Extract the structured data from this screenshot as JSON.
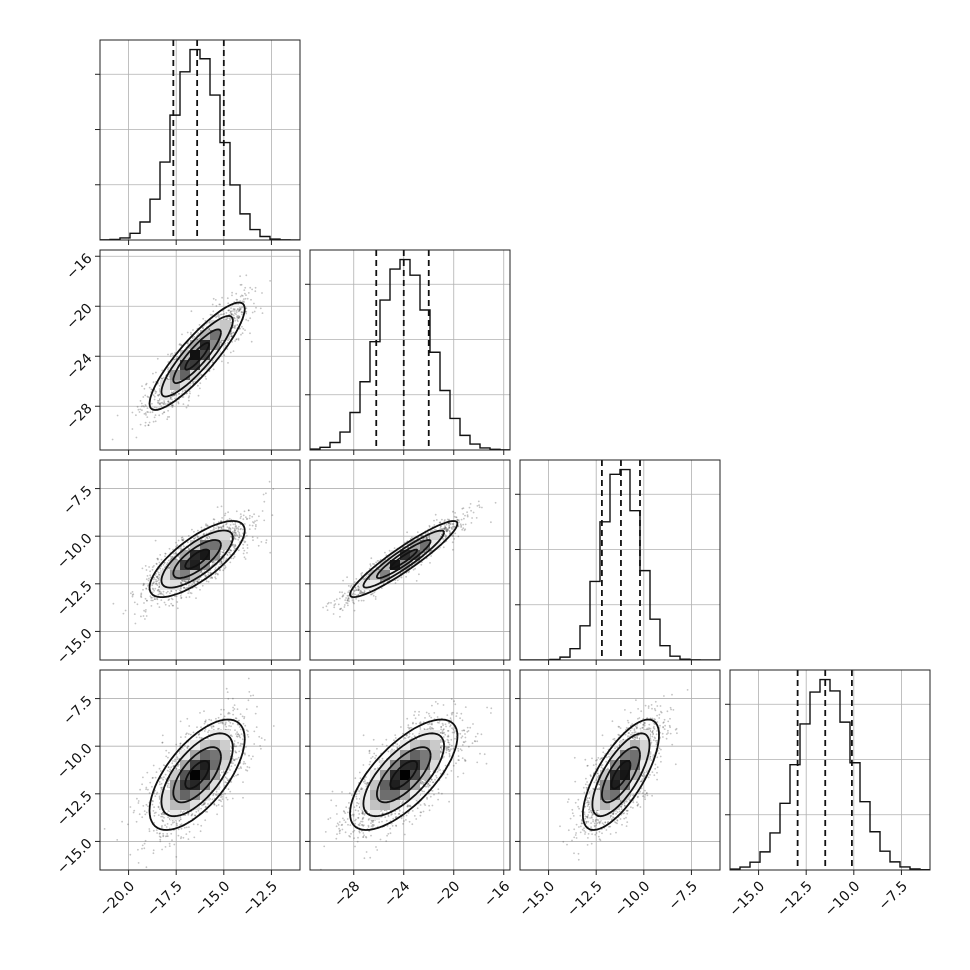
{
  "chart_data": {
    "type": "corner",
    "variables": [
      {
        "mean": -16.4,
        "sd": 1.25,
        "q16": -17.65,
        "q50": -16.4,
        "q84": -15.0
      },
      {
        "mean": -24.0,
        "sd": 2.15,
        "q16": -26.2,
        "q50": -24.0,
        "q84": -22.0
      },
      {
        "mean": -11.2,
        "sd": 1.0,
        "q16": -12.2,
        "q50": -11.2,
        "q84": -10.2
      },
      {
        "mean": -11.5,
        "sd": 1.45,
        "q16": -12.95,
        "q50": -11.5,
        "q84": -10.1
      }
    ],
    "ranges": [
      [
        -21.5,
        -11.0
      ],
      [
        -31.5,
        -15.5
      ],
      [
        -16.5,
        -6.0
      ],
      [
        -16.5,
        -6.0
      ]
    ],
    "correlations": [
      [
        1,
        0.88,
        0.75,
        0.65
      ],
      [
        0.88,
        1,
        0.93,
        0.7
      ],
      [
        0.75,
        0.93,
        1,
        0.72
      ],
      [
        0.65,
        0.7,
        0.72,
        1
      ]
    ],
    "tick_values": [
      [
        -20.0,
        -17.5,
        -15.0,
        -12.5
      ],
      [
        -28,
        -24,
        -20,
        -16
      ],
      [
        -15.0,
        -12.5,
        -10.0,
        -7.5
      ],
      [
        -15.0,
        -12.5,
        -10.0,
        -7.5
      ]
    ],
    "tick_labels": [
      [
        "−20.0",
        "−17.5",
        "−15.0",
        "−12.5"
      ],
      [
        "−28",
        "−24",
        "−20",
        "−16"
      ],
      [
        "−15.0",
        "−12.5",
        "−10.0",
        "−7.5"
      ],
      [
        "−15.0",
        "−12.5",
        "−10.0",
        "−7.5"
      ]
    ],
    "diag_scale_fracs": [
      0.29,
      0.58,
      0.87
    ],
    "hist_bins": 20,
    "quantiles": [
      0.16,
      0.5,
      0.84
    ],
    "contour_levels_sigma": [
      0.5,
      1.0,
      1.5,
      2.0
    ],
    "title": "",
    "axis_labels": []
  }
}
